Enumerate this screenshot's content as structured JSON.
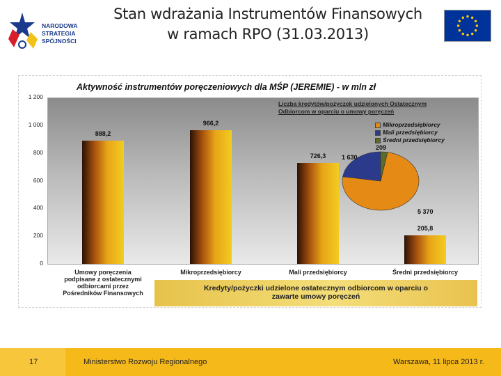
{
  "header": {
    "logo_line1": "NARODOWA",
    "logo_line2": "STRATEGIA SPÓJNOŚCI",
    "title_line1": "Stan wdrażania Instrumentów Finansowych",
    "title_line2": "w ramach RPO (31.03.2013)"
  },
  "chart_data": [
    {
      "type": "bar",
      "title": "Aktywność instrumentów poręczeniowych dla MŚP (JEREMIE) - w mln zł",
      "categories": [
        "Umowy poręczenia podpisane z ostatecznymi odbiorcami przez Pośredników Finansowych",
        "Mikroprzedsiębiorcy",
        "Mali przedsiębiorcy",
        "Średni przedsiębiorcy"
      ],
      "category_lines": [
        [
          "Umowy poręczenia",
          "podpisane z ostatecznymi",
          "odbiorcami przez",
          "Pośredników Finansowych"
        ],
        [
          "Mikroprzedsiębiorcy"
        ],
        [
          "Mali przedsiębiorcy"
        ],
        [
          "Średni przedsiębiorcy"
        ]
      ],
      "values": [
        888.2,
        966.2,
        726.3,
        205.8
      ],
      "value_labels": [
        "888,2",
        "966,2",
        "726,3",
        "205,8"
      ],
      "yticks": [
        "0",
        "200",
        "400",
        "600",
        "800",
        "1 000",
        "1 200"
      ],
      "ylim": [
        0,
        1200
      ],
      "caption": [
        "Kredyty/pożyczki udzielone ostatecznym odbiorcom w oparciu o",
        "zawarte umowy poręczeń"
      ],
      "grid": false
    },
    {
      "type": "pie",
      "title": [
        "Liczba kredytów/pożyczek udzielonych Ostatecznym",
        "Odbiorcom w oparciu o umowy poręczeń"
      ],
      "labels": [
        "Mikroprzedsiębiorcy",
        "Mali przedsiębiorcy",
        "Średni przedsiębiorcy"
      ],
      "values": [
        5370,
        1630,
        209
      ],
      "value_labels": [
        "5 370",
        "1 630",
        "209"
      ],
      "colors": [
        "#e58a14",
        "#2c3a8c",
        "#5b6b2a"
      ],
      "legend_position": "top-right"
    }
  ],
  "footer": {
    "page_number": "17",
    "ministry": "Ministerstwo Rozwoju Regionalnego",
    "place_date": "Warszawa, 11 lipca 2013 r."
  },
  "colors": {
    "footer": "#f6b91a",
    "eu_blue": "#003399",
    "eu_star": "#ffcc00",
    "bar_light": "#f2cc20",
    "bar_dark": "#2a1206"
  }
}
